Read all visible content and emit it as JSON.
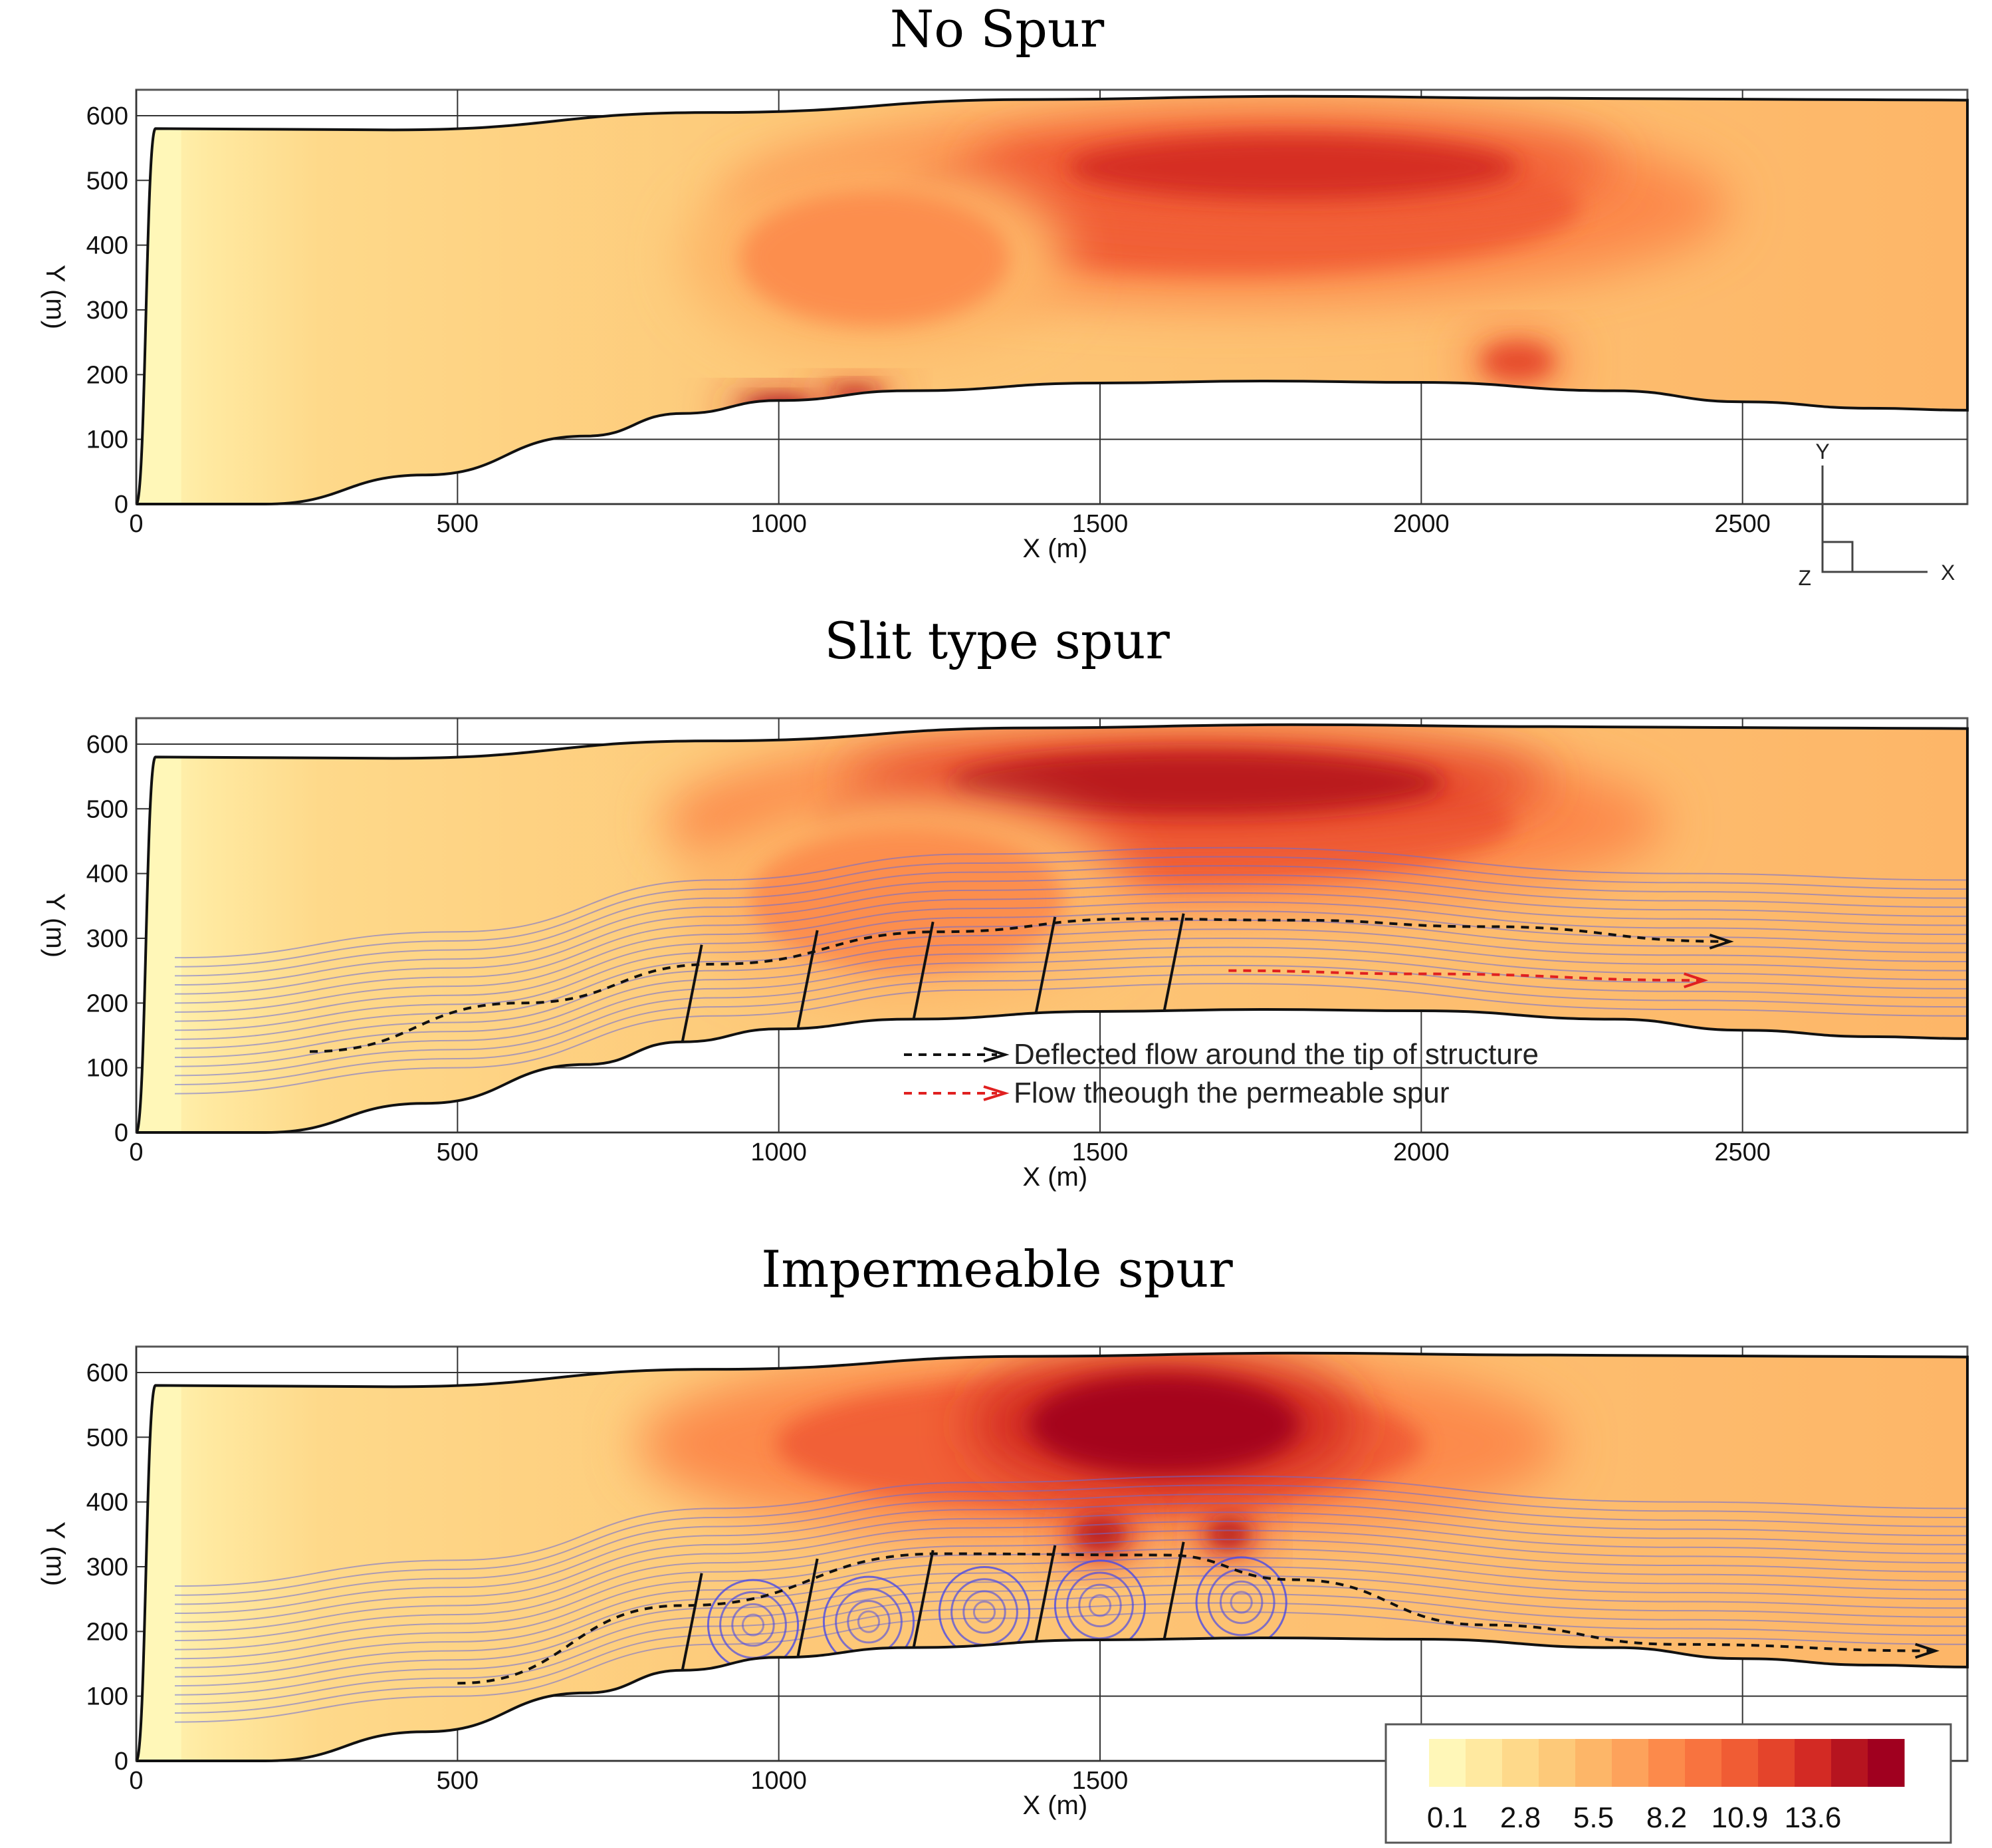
{
  "chart_data": {
    "type": "heatmap",
    "x_label": "X (m)",
    "y_label": "Y (m)",
    "xlim": [
      0,
      2850
    ],
    "ylim": [
      0,
      640
    ],
    "x_ticks": [
      0,
      500,
      1000,
      1500,
      2000,
      2500
    ],
    "y_ticks": [
      0,
      100,
      200,
      300,
      400,
      500,
      600
    ],
    "colorbar": {
      "labels": [
        "0.1",
        "2.8",
        "5.5",
        "8.2",
        "10.9",
        "13.6"
      ],
      "colors": [
        "#fff7b8",
        "#ffe9a0",
        "#fed98a",
        "#fdc979",
        "#fdb668",
        "#fda25b",
        "#fc8a4b",
        "#f8733f",
        "#f05c34",
        "#e4442b",
        "#d32a24",
        "#b6141f",
        "#a0001f"
      ]
    },
    "channel": {
      "left_bank": [
        [
          0,
          0
        ],
        [
          40,
          0
        ],
        [
          200,
          0
        ],
        [
          450,
          45
        ],
        [
          700,
          105
        ],
        [
          850,
          140
        ],
        [
          1000,
          160
        ],
        [
          1200,
          175
        ],
        [
          1500,
          187
        ],
        [
          1750,
          190
        ],
        [
          2000,
          188
        ],
        [
          2300,
          175
        ],
        [
          2500,
          158
        ],
        [
          2700,
          148
        ],
        [
          2850,
          145
        ]
      ],
      "right_bank": [
        [
          0,
          0
        ],
        [
          30,
          580
        ],
        [
          400,
          578
        ],
        [
          900,
          605
        ],
        [
          1400,
          625
        ],
        [
          1800,
          630
        ],
        [
          2200,
          627
        ],
        [
          2600,
          625
        ],
        [
          2850,
          624
        ]
      ]
    },
    "panels": [
      {
        "title": "No Spur",
        "tick_labels_x": [
          "0",
          "500",
          "1000",
          "1500",
          "2000",
          "2500"
        ],
        "show_triad": true,
        "hotspots": [
          {
            "x": 1700,
            "y": 460,
            "rx": 780,
            "ry": 150,
            "level": 8
          },
          {
            "x": 1800,
            "y": 520,
            "rx": 500,
            "ry": 70,
            "level": 10
          },
          {
            "x": 1000,
            "y": 145,
            "rx": 80,
            "ry": 25,
            "level": 12
          },
          {
            "x": 1120,
            "y": 170,
            "rx": 60,
            "ry": 20,
            "level": 11
          },
          {
            "x": 2150,
            "y": 220,
            "rx": 80,
            "ry": 40,
            "level": 9
          },
          {
            "x": 1150,
            "y": 380,
            "rx": 300,
            "ry": 150,
            "level": 6
          }
        ],
        "spurs": [],
        "vortices": []
      },
      {
        "title": "Slit type spur",
        "tick_labels_x": [
          "0",
          "500",
          "1000",
          "1500",
          "2000",
          "2500"
        ],
        "show_triad": false,
        "hotspots": [
          {
            "x": 1600,
            "y": 480,
            "rx": 780,
            "ry": 140,
            "level": 8
          },
          {
            "x": 1650,
            "y": 540,
            "rx": 550,
            "ry": 70,
            "level": 11
          },
          {
            "x": 1200,
            "y": 360,
            "rx": 350,
            "ry": 160,
            "level": 6
          }
        ],
        "spurs": [
          [
            850,
            1000
          ],
          [
            1030,
            1060
          ],
          [
            1210,
            1250
          ],
          [
            1400,
            1430
          ],
          [
            1600,
            1630
          ]
        ],
        "vortices": [],
        "legend": [
          {
            "label": "Deflected flow around the tip of structure",
            "color": "#111111"
          },
          {
            "label": "Flow theough the permeable spur",
            "color": "#e02020"
          }
        ],
        "deflected_path": [
          [
            270,
            125
          ],
          [
            600,
            200
          ],
          [
            900,
            260
          ],
          [
            1250,
            310
          ],
          [
            1550,
            330
          ],
          [
            1800,
            328
          ],
          [
            2100,
            318
          ],
          [
            2480,
            295
          ]
        ],
        "permeable_path": [
          [
            1700,
            250
          ],
          [
            2000,
            245
          ],
          [
            2440,
            235
          ]
        ]
      },
      {
        "title": "Impermeable spur",
        "tick_labels_x": [
          "0",
          "500",
          "1000",
          "1500"
        ],
        "show_triad": false,
        "hotspots": [
          {
            "x": 1500,
            "y": 490,
            "rx": 720,
            "ry": 150,
            "level": 8
          },
          {
            "x": 1600,
            "y": 520,
            "rx": 300,
            "ry": 110,
            "level": 12
          },
          {
            "x": 1500,
            "y": 350,
            "rx": 60,
            "ry": 40,
            "level": 11
          },
          {
            "x": 1700,
            "y": 350,
            "rx": 50,
            "ry": 35,
            "level": 11
          }
        ],
        "spurs": [
          [
            850,
            1000
          ],
          [
            1030,
            1060
          ],
          [
            1210,
            1250
          ],
          [
            1400,
            1430
          ],
          [
            1600,
            1630
          ]
        ],
        "vortices": [
          [
            960,
            210
          ],
          [
            1140,
            215
          ],
          [
            1320,
            230
          ],
          [
            1500,
            240
          ],
          [
            1720,
            245
          ]
        ],
        "deflected_path": [
          [
            500,
            120
          ],
          [
            850,
            240
          ],
          [
            1250,
            320
          ],
          [
            1600,
            318
          ],
          [
            1800,
            280
          ],
          [
            2100,
            210
          ],
          [
            2400,
            180
          ],
          [
            2800,
            170
          ]
        ]
      }
    ]
  }
}
